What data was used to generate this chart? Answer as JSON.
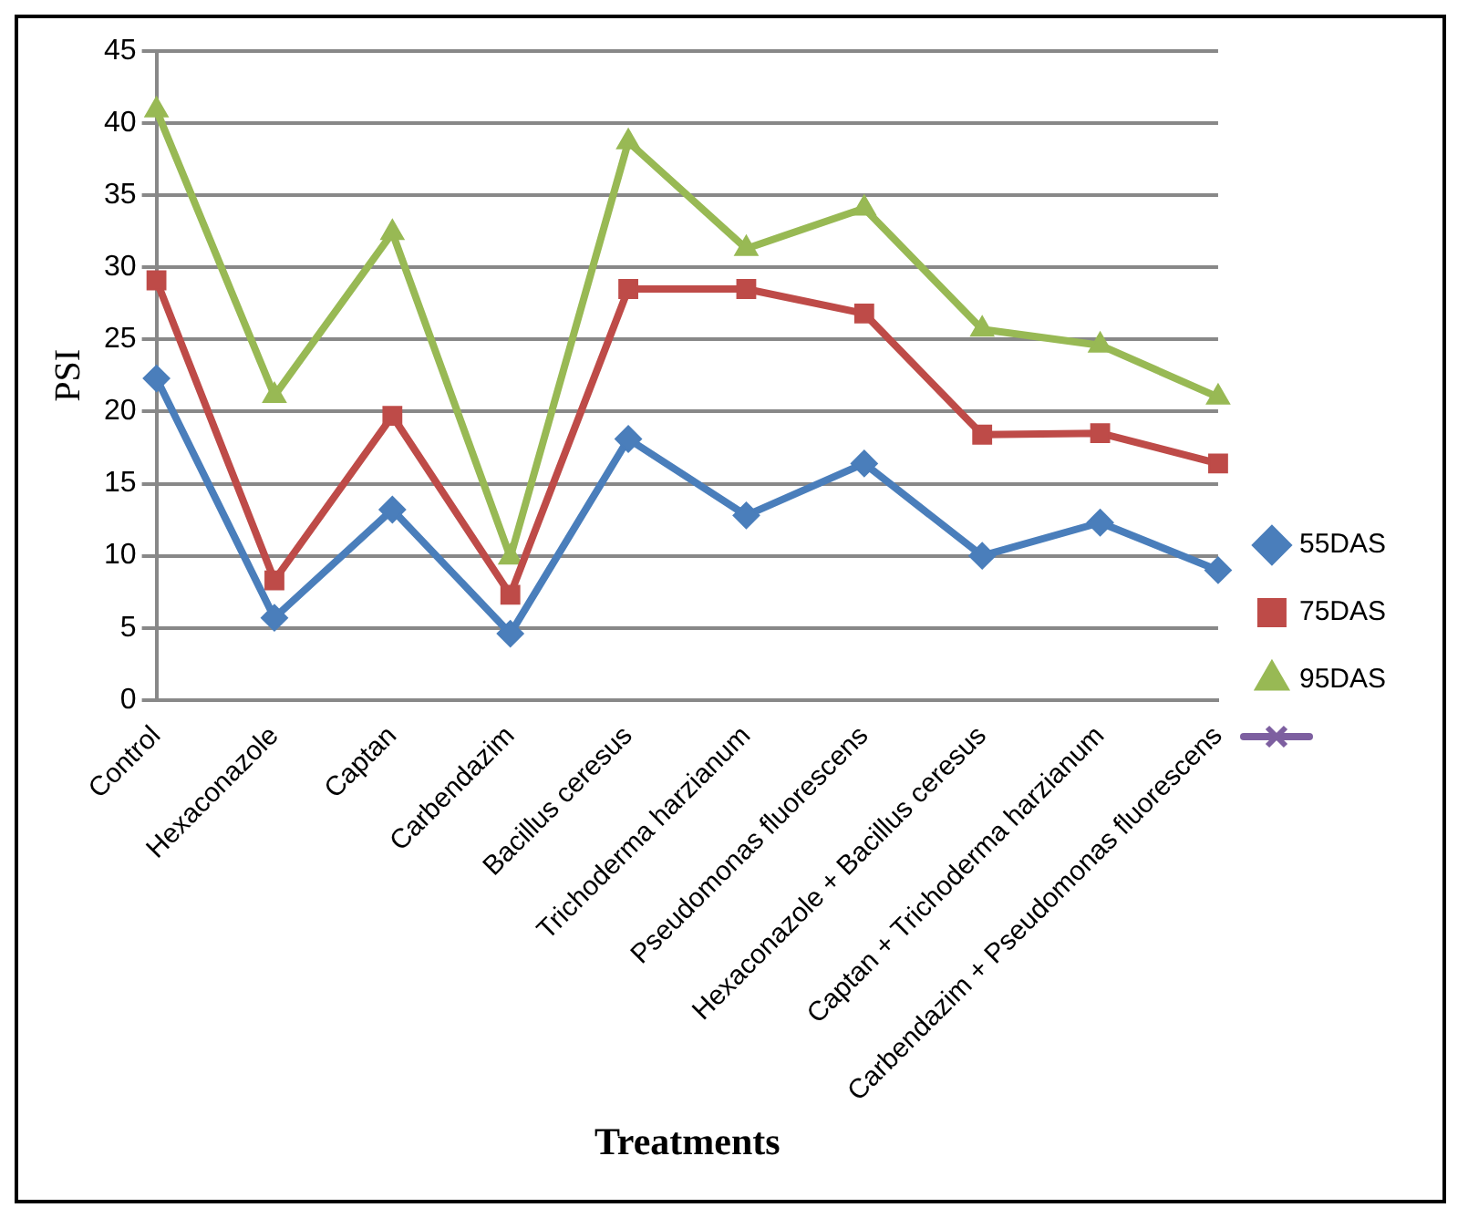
{
  "chart_data": {
    "type": "line",
    "xlabel": "Treatments",
    "ylabel": "PSI",
    "categories": [
      "Control",
      "Hexaconazole",
      "Captan",
      "Carbendazim",
      "Bacillus ceresus",
      "Trichoderma harzianum",
      "Pseudomonas fluorescens",
      "Hexaconazole + Bacillus ceresus",
      "Captan + Trichoderma harzianum",
      "Carbendazim + Pseudomonas fluorescens"
    ],
    "series": [
      {
        "name": "55DAS",
        "color": "#4a7ebb",
        "marker": "diamond",
        "values": [
          22.3,
          5.7,
          13.2,
          4.6,
          18.1,
          12.8,
          16.4,
          10.0,
          12.3,
          9.0
        ]
      },
      {
        "name": "75DAS",
        "color": "#be4b48",
        "marker": "square",
        "values": [
          29.1,
          8.3,
          19.7,
          7.3,
          28.5,
          28.5,
          26.8,
          18.4,
          18.5,
          16.4
        ]
      },
      {
        "name": "95DAS",
        "color": "#98b954",
        "marker": "triangle",
        "values": [
          40.9,
          21.1,
          32.4,
          9.9,
          38.7,
          31.3,
          34.1,
          25.7,
          24.6,
          21.0
        ]
      }
    ],
    "ylim": [
      0,
      45
    ],
    "yticks": [
      0,
      5,
      10,
      15,
      20,
      25,
      30,
      35,
      40,
      45
    ],
    "grid": "y",
    "legend": "right"
  }
}
